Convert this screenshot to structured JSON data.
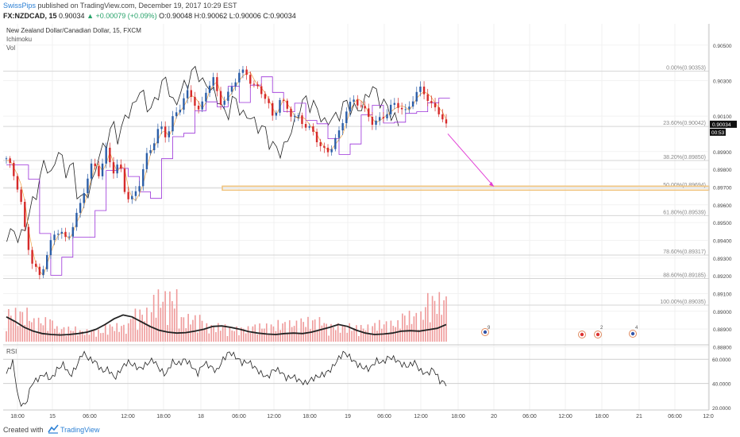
{
  "header": {
    "author": "SwissPips",
    "publish_text": "published on TradingView.com, December 19, 2017 10:29 EST",
    "symbol": "FX:NZDCAD, 15",
    "last": "0.90034",
    "change": "▲ +0.00079 (+0.09%)",
    "o": "O:0.90048",
    "h": "H:0.90062",
    "lo": "L:0.90006",
    "c": "C:0.90034"
  },
  "legend": {
    "title": "New Zealand Dollar/Canadian Dollar, 15, FXCM",
    "ind1": "Ichimoku",
    "ind2": "Vol"
  },
  "rsi_label": "RSI",
  "footer": {
    "created": "Created with",
    "brand": "TradingView"
  },
  "colors": {
    "up": "#2b5ea8",
    "down": "#d62a2a",
    "cloud": "#a8c8f2",
    "volume": "#ef9a9a",
    "fib_line": "#d5d5d5",
    "target": "#f0c27a",
    "arrow": "#e23fd6",
    "current_price_bg": "#111111"
  },
  "chart_data": [
    {
      "type": "line",
      "title": "New Zealand Dollar/Canadian Dollar, 15, FXCM",
      "note": "candlestick with Ichimoku cloud and volume",
      "price_ticks": [
        "0.90500",
        "0.90300",
        "0.90100",
        "0.89900",
        "0.89800",
        "0.89700",
        "0.89600",
        "0.89500",
        "0.89400",
        "0.89300",
        "0.89200",
        "0.89100",
        "0.89000",
        "0.88900",
        "0.88800"
      ],
      "ylim": [
        0.8882,
        0.9062
      ],
      "current_price": "0.90034",
      "countdown": "00:53",
      "x_ticks": [
        "18:00",
        "15",
        "06:00",
        "12:00",
        "18:00",
        "18",
        "06:00",
        "12:00",
        "18:00",
        "19",
        "06:00",
        "12:00",
        "18:00",
        "20",
        "06:00",
        "12:00",
        "18:00",
        "21",
        "06:00",
        "12:0"
      ],
      "fib_levels": [
        {
          "label": "0.00%(0.90353)",
          "value": 0.90353
        },
        {
          "label": "23.60%(0.90042)",
          "value": 0.90042
        },
        {
          "label": "38.20%(0.89850)",
          "value": 0.8985
        },
        {
          "label": "50.00%(0.89694)",
          "value": 0.89694
        },
        {
          "label": "61.80%(0.89539)",
          "value": 0.89539
        },
        {
          "label": "78.60%(0.89317)",
          "value": 0.89317
        },
        {
          "label": "88.60%(0.89185)",
          "value": 0.89185
        },
        {
          "label": "100.00%(0.89035)",
          "value": 0.89035
        }
      ],
      "target_level": 0.89694,
      "close_path": [
        0.8985,
        0.8978,
        0.8968,
        0.894,
        0.8925,
        0.892,
        0.8932,
        0.8942,
        0.8945,
        0.894,
        0.895,
        0.8958,
        0.8972,
        0.8985,
        0.8978,
        0.899,
        0.8978,
        0.8984,
        0.8965,
        0.8962,
        0.8972,
        0.8988,
        0.8995,
        0.9003,
        0.8998,
        0.901,
        0.9015,
        0.9022,
        0.902,
        0.9013,
        0.9025,
        0.903,
        0.9018,
        0.9021,
        0.9028,
        0.9033,
        0.9035,
        0.9028,
        0.9025,
        0.9018,
        0.901,
        0.902,
        0.9015,
        0.9008,
        0.901,
        0.9005,
        0.9,
        0.8993,
        0.899,
        0.8995,
        0.9,
        0.9013,
        0.902,
        0.9018,
        0.901,
        0.9006,
        0.9009,
        0.9012,
        0.9015,
        0.9016,
        0.9013,
        0.902,
        0.9024,
        0.9022,
        0.9016,
        0.9012,
        0.9003
      ],
      "volume_avg_path": [
        0.52,
        0.42,
        0.3,
        0.22,
        0.17,
        0.15,
        0.14,
        0.15,
        0.17,
        0.2,
        0.26,
        0.36,
        0.48,
        0.56,
        0.52,
        0.42,
        0.32,
        0.24,
        0.2,
        0.18,
        0.19,
        0.22,
        0.26,
        0.32,
        0.33,
        0.3,
        0.26,
        0.21,
        0.18,
        0.16,
        0.15,
        0.17,
        0.18,
        0.17,
        0.2,
        0.25,
        0.3,
        0.36,
        0.32,
        0.24,
        0.18,
        0.15,
        0.16,
        0.18,
        0.22,
        0.23,
        0.22,
        0.25,
        0.28,
        0.36
      ],
      "event_markers": [
        "9",
        "2",
        "4"
      ]
    },
    {
      "type": "line",
      "title": "RSI",
      "ticks": [
        "60.0000",
        "40.0000",
        "20.0000"
      ],
      "ylim": [
        18,
        72
      ],
      "guides": [
        60,
        40
      ],
      "values": [
        48,
        58,
        24,
        22,
        40,
        44,
        48,
        43,
        52,
        56,
        46,
        54,
        66,
        60,
        58,
        50,
        52,
        44,
        52,
        58,
        55,
        52,
        56,
        60,
        52,
        47,
        58,
        56,
        60,
        55,
        48,
        57,
        54,
        50,
        60,
        66,
        62,
        57,
        58,
        53,
        48,
        45,
        52,
        50,
        44,
        46,
        42,
        40,
        44,
        46,
        48,
        52,
        60,
        66,
        61,
        56,
        53,
        52,
        59,
        57,
        62,
        60,
        56,
        54,
        58,
        50,
        48,
        52,
        42,
        40
      ]
    }
  ]
}
